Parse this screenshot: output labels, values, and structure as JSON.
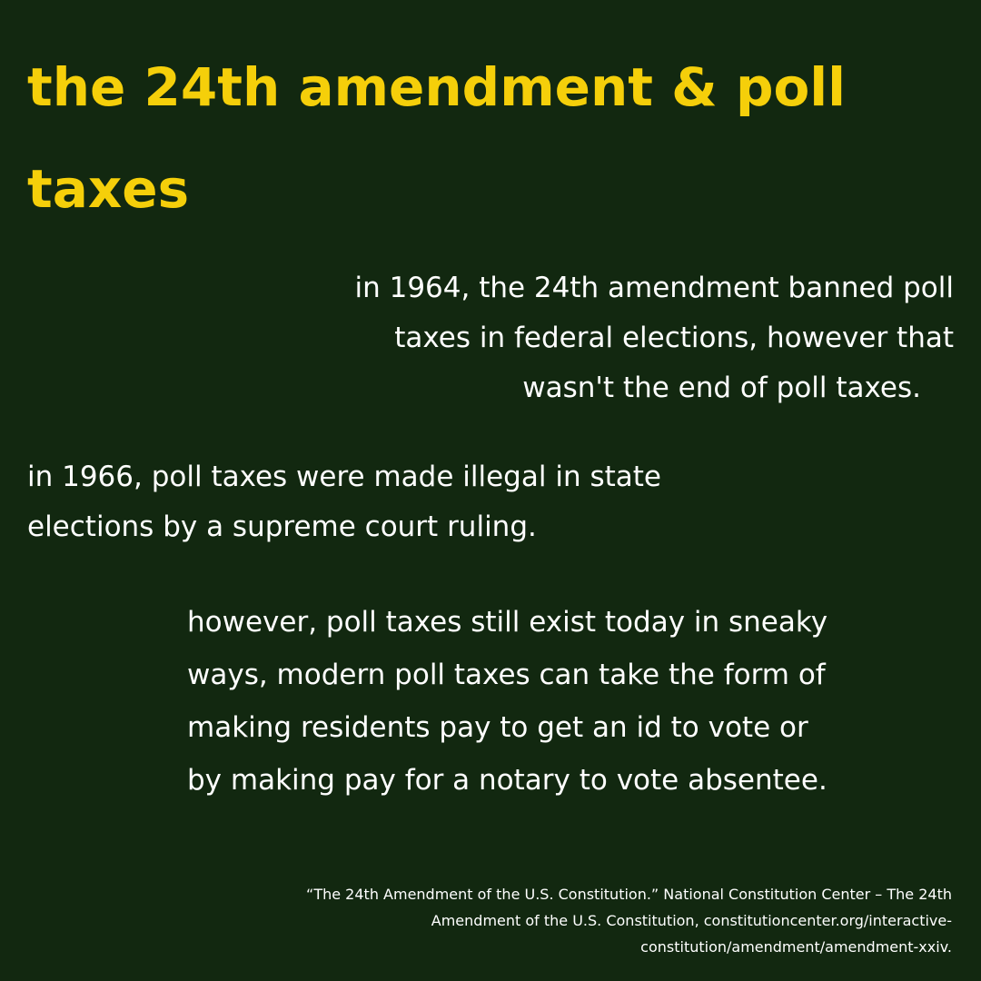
{
  "title": {
    "line1": "the 24th amendment & poll",
    "line2": "taxes"
  },
  "paragraph_1": {
    "line1": "in 1964, the 24th amendment banned poll",
    "line2": "taxes in federal elections, however that",
    "line3": "wasn't the end of poll taxes."
  },
  "paragraph_2": {
    "line1": "in 1966, poll taxes were made illegal in state",
    "line2": "elections by a supreme court ruling."
  },
  "paragraph_3": {
    "line1": "however, poll taxes still exist today in sneaky",
    "line2": "ways, modern poll taxes can take the form of",
    "line3": "making residents pay to get an id to vote or",
    "line4": "by making pay for a notary to vote absentee."
  },
  "citation": {
    "line1": "“The 24th Amendment of the U.S. Constitution.” National Constitution Center – The 24th",
    "line2": "Amendment of the U.S. Constitution, constitutioncenter.org/interactive-",
    "line3": "constitution/amendment/amendment-xxiv."
  },
  "colors": {
    "background": "#122810",
    "title": "#f5cf0a",
    "body_text": "#ffffff"
  }
}
